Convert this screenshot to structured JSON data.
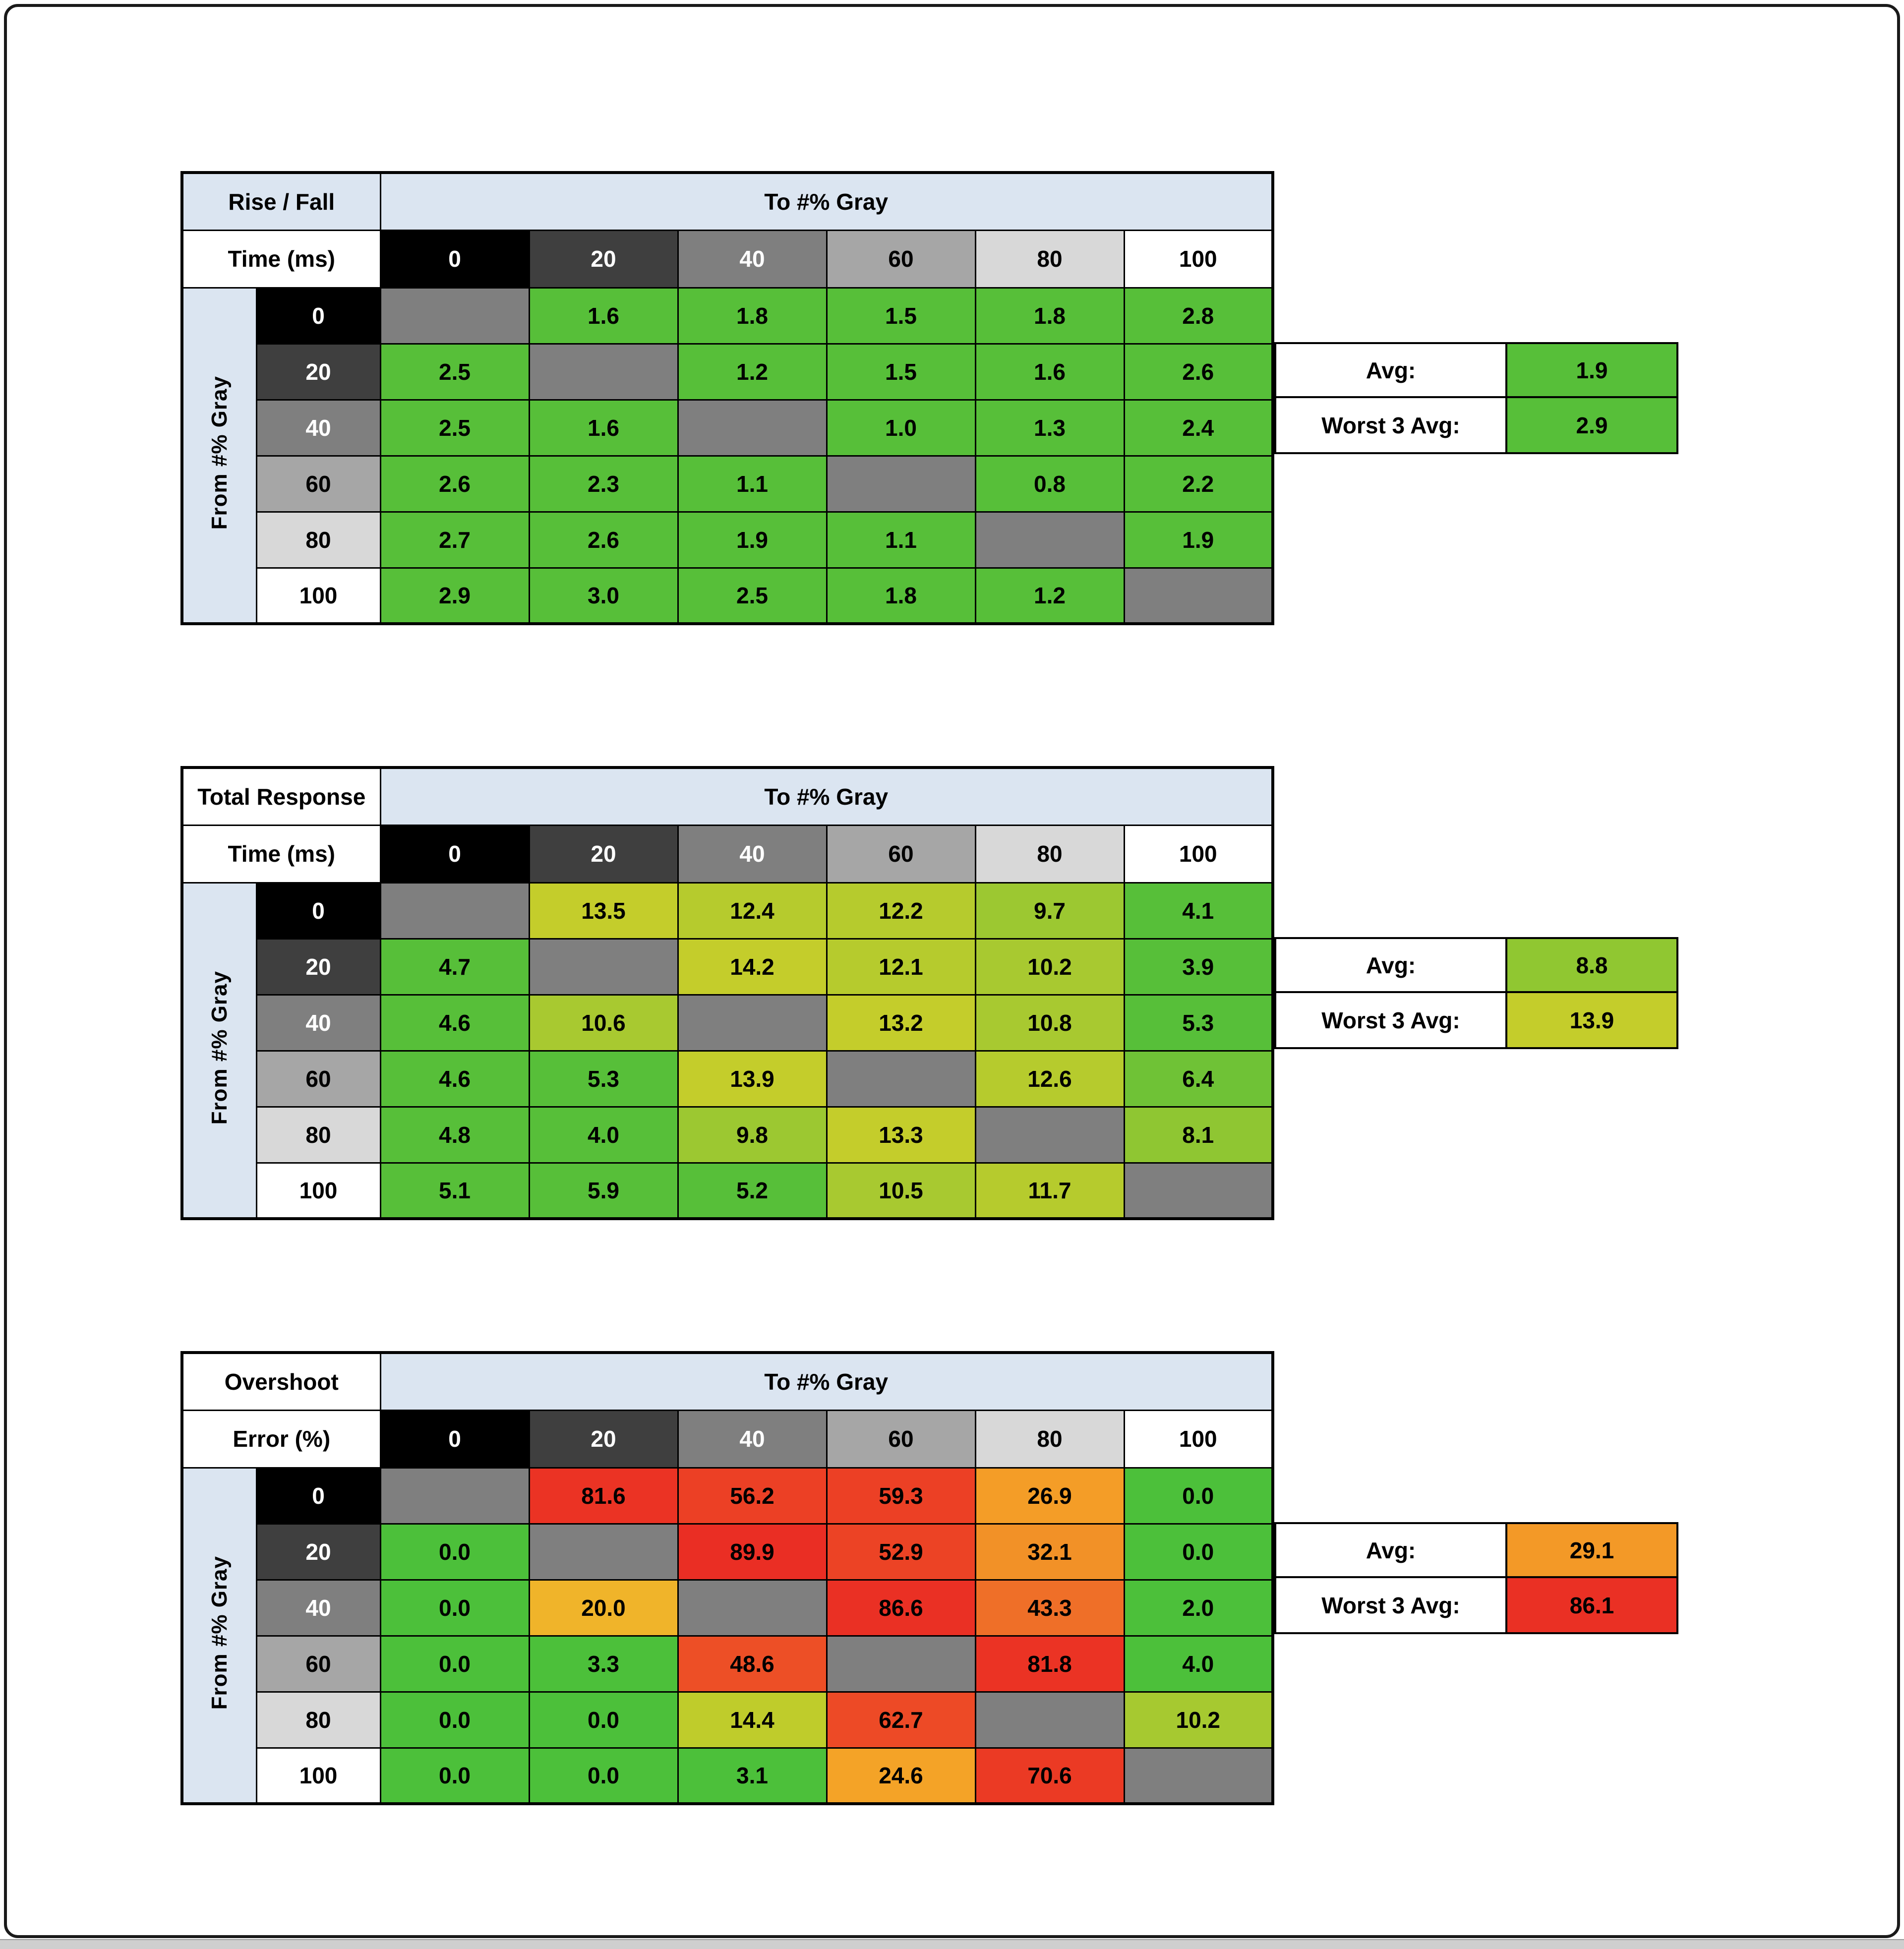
{
  "frame": {
    "background": "#ffffff",
    "border_color": "#1a1a1a"
  },
  "shared": {
    "to_label": "To #% Gray",
    "from_label": "From #% Gray",
    "col_headers": [
      "0",
      "20",
      "40",
      "60",
      "80",
      "100"
    ],
    "row_headers": [
      "0",
      "20",
      "40",
      "60",
      "80",
      "100"
    ],
    "header_shades": [
      {
        "bg": "#000000",
        "fg": "#ffffff"
      },
      {
        "bg": "#3f3f3f",
        "fg": "#ffffff"
      },
      {
        "bg": "#7f7f7f",
        "fg": "#ffffff"
      },
      {
        "bg": "#a6a6a6",
        "fg": "#000000"
      },
      {
        "bg": "#d8d8d8",
        "fg": "#000000"
      },
      {
        "bg": "#ffffff",
        "fg": "#000000"
      }
    ],
    "diagonal_color": "#7f7f7f",
    "band_color": "#dbe5f1"
  },
  "tables": [
    {
      "title_line1": "Rise / Fall",
      "title_line2": "Time (ms)",
      "corner1_bg": "#dbe5f1",
      "corner2_bg": "#ffffff",
      "avg_label": "Avg:",
      "avg_value": "1.9",
      "avg_color": "#57bf39",
      "worst_label": "Worst 3 Avg:",
      "worst_value": "2.9",
      "worst_color": "#57bf39",
      "values": [
        [
          "",
          "1.6",
          "1.8",
          "1.5",
          "1.8",
          "2.8"
        ],
        [
          "2.5",
          "",
          "1.2",
          "1.5",
          "1.6",
          "2.6"
        ],
        [
          "2.5",
          "1.6",
          "",
          "1.0",
          "1.3",
          "2.4"
        ],
        [
          "2.6",
          "2.3",
          "1.1",
          "",
          "0.8",
          "2.2"
        ],
        [
          "2.7",
          "2.6",
          "1.9",
          "1.1",
          "",
          "1.9"
        ],
        [
          "2.9",
          "3.0",
          "2.5",
          "1.8",
          "1.2",
          ""
        ]
      ],
      "colors": [
        [
          "#7f7f7f",
          "#57bf39",
          "#57bf39",
          "#57bf39",
          "#57bf39",
          "#57bf39"
        ],
        [
          "#57bf39",
          "#7f7f7f",
          "#57bf39",
          "#57bf39",
          "#57bf39",
          "#57bf39"
        ],
        [
          "#57bf39",
          "#57bf39",
          "#7f7f7f",
          "#57bf39",
          "#57bf39",
          "#57bf39"
        ],
        [
          "#57bf39",
          "#57bf39",
          "#57bf39",
          "#7f7f7f",
          "#57bf39",
          "#57bf39"
        ],
        [
          "#57bf39",
          "#57bf39",
          "#57bf39",
          "#57bf39",
          "#7f7f7f",
          "#57bf39"
        ],
        [
          "#57bf39",
          "#57bf39",
          "#57bf39",
          "#57bf39",
          "#57bf39",
          "#7f7f7f"
        ]
      ]
    },
    {
      "title_line1": "Total Response",
      "title_line2": "Time (ms)",
      "corner1_bg": "#ffffff",
      "corner2_bg": "#ffffff",
      "avg_label": "Avg:",
      "avg_value": "8.8",
      "avg_color": "#90c731",
      "worst_label": "Worst 3 Avg:",
      "worst_value": "13.9",
      "worst_color": "#c4cd2b",
      "values": [
        [
          "",
          "13.5",
          "12.4",
          "12.2",
          "9.7",
          "4.1"
        ],
        [
          "4.7",
          "",
          "14.2",
          "12.1",
          "10.2",
          "3.9"
        ],
        [
          "4.6",
          "10.6",
          "",
          "13.2",
          "10.8",
          "5.3"
        ],
        [
          "4.6",
          "5.3",
          "13.9",
          "",
          "12.6",
          "6.4"
        ],
        [
          "4.8",
          "4.0",
          "9.8",
          "13.3",
          "",
          "8.1"
        ],
        [
          "5.1",
          "5.9",
          "5.2",
          "10.5",
          "11.7",
          ""
        ]
      ],
      "colors": [
        [
          "#7f7f7f",
          "#c4cd2b",
          "#b6cb2d",
          "#b6cb2d",
          "#9cc831",
          "#57bf39"
        ],
        [
          "#57bf39",
          "#7f7f7f",
          "#c4cd2b",
          "#b6cb2d",
          "#a8c930",
          "#57bf39"
        ],
        [
          "#57bf39",
          "#a8c930",
          "#7f7f7f",
          "#c4cd2b",
          "#a8c930",
          "#57bf39"
        ],
        [
          "#57bf39",
          "#57bf39",
          "#c4cd2b",
          "#7f7f7f",
          "#b6cb2d",
          "#6fc236"
        ],
        [
          "#57bf39",
          "#57bf39",
          "#9cc831",
          "#c4cd2b",
          "#7f7f7f",
          "#8fc632"
        ],
        [
          "#57bf39",
          "#57bf39",
          "#57bf39",
          "#a8c930",
          "#b6cb2d",
          "#7f7f7f"
        ]
      ]
    },
    {
      "title_line1": "Overshoot",
      "title_line2": "Error (%)",
      "corner1_bg": "#ffffff",
      "corner2_bg": "#ffffff",
      "avg_label": "Avg:",
      "avg_value": "29.1",
      "avg_color": "#f39927",
      "worst_label": "Worst 3 Avg:",
      "worst_value": "86.1",
      "worst_color": "#ea3024",
      "values": [
        [
          "",
          "81.6",
          "56.2",
          "59.3",
          "26.9",
          "0.0"
        ],
        [
          "0.0",
          "",
          "89.9",
          "52.9",
          "32.1",
          "0.0"
        ],
        [
          "0.0",
          "20.0",
          "",
          "86.6",
          "43.3",
          "2.0"
        ],
        [
          "0.0",
          "3.3",
          "48.6",
          "",
          "81.8",
          "4.0"
        ],
        [
          "0.0",
          "0.0",
          "14.4",
          "62.7",
          "",
          "10.2"
        ],
        [
          "0.0",
          "0.0",
          "3.1",
          "24.6",
          "70.6",
          ""
        ]
      ],
      "colors": [
        [
          "#7f7f7f",
          "#eb3324",
          "#ec4025",
          "#ec4025",
          "#f49d27",
          "#4cc03a"
        ],
        [
          "#4cc03a",
          "#7f7f7f",
          "#ea2e24",
          "#ec4325",
          "#f29127",
          "#4cc03a"
        ],
        [
          "#4cc03a",
          "#f0b42a",
          "#7f7f7f",
          "#ea3024",
          "#ef6f28",
          "#4cc03a"
        ],
        [
          "#4cc03a",
          "#4cc03a",
          "#ed4f26",
          "#7f7f7f",
          "#eb3324",
          "#4cc03a"
        ],
        [
          "#4cc03a",
          "#4cc03a",
          "#bfcc2b",
          "#ed4a26",
          "#7f7f7f",
          "#a6c930"
        ],
        [
          "#4cc03a",
          "#4cc03a",
          "#4cc03a",
          "#f4a327",
          "#eb3a24",
          "#7f7f7f"
        ]
      ]
    }
  ],
  "chart_data": [
    {
      "type": "heatmap",
      "title": "Rise / Fall Time (ms)",
      "xlabel": "To #% Gray",
      "ylabel": "From #% Gray",
      "x_categories": [
        0,
        20,
        40,
        60,
        80,
        100
      ],
      "y_categories": [
        0,
        20,
        40,
        60,
        80,
        100
      ],
      "values": [
        [
          null,
          1.6,
          1.8,
          1.5,
          1.8,
          2.8
        ],
        [
          2.5,
          null,
          1.2,
          1.5,
          1.6,
          2.6
        ],
        [
          2.5,
          1.6,
          null,
          1.0,
          1.3,
          2.4
        ],
        [
          2.6,
          2.3,
          1.1,
          null,
          0.8,
          2.2
        ],
        [
          2.7,
          2.6,
          1.9,
          1.1,
          null,
          1.9
        ],
        [
          2.9,
          3.0,
          2.5,
          1.8,
          1.2,
          null
        ]
      ],
      "avg": 1.9,
      "worst_3_avg": 2.9
    },
    {
      "type": "heatmap",
      "title": "Total Response Time (ms)",
      "xlabel": "To #% Gray",
      "ylabel": "From #% Gray",
      "x_categories": [
        0,
        20,
        40,
        60,
        80,
        100
      ],
      "y_categories": [
        0,
        20,
        40,
        60,
        80,
        100
      ],
      "values": [
        [
          null,
          13.5,
          12.4,
          12.2,
          9.7,
          4.1
        ],
        [
          4.7,
          null,
          14.2,
          12.1,
          10.2,
          3.9
        ],
        [
          4.6,
          10.6,
          null,
          13.2,
          10.8,
          5.3
        ],
        [
          4.6,
          5.3,
          13.9,
          null,
          12.6,
          6.4
        ],
        [
          4.8,
          4.0,
          9.8,
          13.3,
          null,
          8.1
        ],
        [
          5.1,
          5.9,
          5.2,
          10.5,
          11.7,
          null
        ]
      ],
      "avg": 8.8,
      "worst_3_avg": 13.9
    },
    {
      "type": "heatmap",
      "title": "Overshoot Error (%)",
      "xlabel": "To #% Gray",
      "ylabel": "From #% Gray",
      "x_categories": [
        0,
        20,
        40,
        60,
        80,
        100
      ],
      "y_categories": [
        0,
        20,
        40,
        60,
        80,
        100
      ],
      "values": [
        [
          null,
          81.6,
          56.2,
          59.3,
          26.9,
          0.0
        ],
        [
          0.0,
          null,
          89.9,
          52.9,
          32.1,
          0.0
        ],
        [
          0.0,
          20.0,
          null,
          86.6,
          43.3,
          2.0
        ],
        [
          0.0,
          3.3,
          48.6,
          null,
          81.8,
          4.0
        ],
        [
          0.0,
          0.0,
          14.4,
          62.7,
          null,
          10.2
        ],
        [
          0.0,
          0.0,
          3.1,
          24.6,
          70.6,
          null
        ]
      ],
      "avg": 29.1,
      "worst_3_avg": 86.1
    }
  ]
}
